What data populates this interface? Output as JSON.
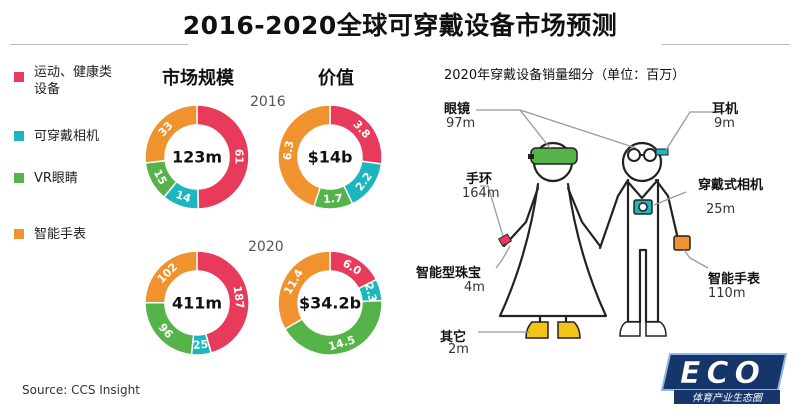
{
  "title": "2016-2020全球可穿戴设备市场预测",
  "legend": [
    {
      "label": "运动、健康类设备",
      "color": "#e83a5a"
    },
    {
      "label": "可穿戴相机",
      "color": "#1cb6bf"
    },
    {
      "label": "VR眼睛",
      "color": "#55b34a"
    },
    {
      "label": "智能手表",
      "color": "#f0922d"
    }
  ],
  "column_headers": {
    "market_size": "市场规模",
    "value": "价值"
  },
  "years": [
    "2016",
    "2020"
  ],
  "source": "Source: CCS Insight",
  "right_title": "2020年穿戴设备销量细分（单位：百万）",
  "chart_data": [
    {
      "type": "donut",
      "year": "2016",
      "metric": "市场规模",
      "center_label": "123m",
      "categories": [
        "运动、健康类设备",
        "可穿戴相机",
        "VR眼睛",
        "智能手表"
      ],
      "values": [
        61,
        14,
        15,
        33
      ],
      "labels": [
        "61",
        "14",
        "15",
        "33"
      ]
    },
    {
      "type": "donut",
      "year": "2016",
      "metric": "价值",
      "center_label": "$14b",
      "categories": [
        "运动、健康类设备",
        "可穿戴相机",
        "VR眼睛",
        "智能手表"
      ],
      "values": [
        3.8,
        2.2,
        1.7,
        6.3
      ],
      "labels": [
        "3.8",
        "2.2",
        "1.7",
        "6.3"
      ]
    },
    {
      "type": "donut",
      "year": "2020",
      "metric": "市场规模",
      "center_label": "411m",
      "categories": [
        "运动、健康类设备",
        "可穿戴相机",
        "VR眼睛",
        "智能手表"
      ],
      "values": [
        187,
        25,
        96,
        102
      ],
      "labels": [
        "187",
        "25",
        "96",
        "102"
      ]
    },
    {
      "type": "donut",
      "year": "2020",
      "metric": "价值",
      "center_label": "$34.2b",
      "categories": [
        "运动、健康类设备",
        "可穿戴相机",
        "VR眼睛",
        "智能手表"
      ],
      "values": [
        6.0,
        2.3,
        14.5,
        11.4
      ],
      "labels": [
        "6.0",
        "2.3",
        "14.5",
        "11.4"
      ]
    },
    {
      "type": "table",
      "title": "2020年穿戴设备销量细分（单位：百万）",
      "categories": [
        "眼镜",
        "耳机",
        "手环",
        "穿戴式相机",
        "智能型珠宝",
        "智能手表",
        "其它"
      ],
      "values": [
        97,
        9,
        164,
        25,
        4,
        110,
        2
      ],
      "labels": [
        "97m",
        "9m",
        "164m",
        "25m",
        "4m",
        "110m",
        "2m"
      ]
    }
  ],
  "colors": {
    "pink": "#e83a5a",
    "teal": "#1cb6bf",
    "green": "#55b34a",
    "orange": "#f0922d",
    "ink": "#222222"
  },
  "logo": {
    "main": "ECO",
    "sub": "体育产业生态圈"
  }
}
